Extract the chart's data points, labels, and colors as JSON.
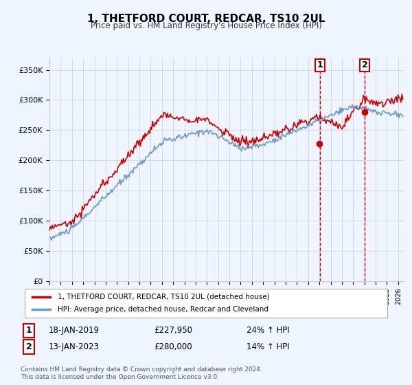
{
  "title": "1, THETFORD COURT, REDCAR, TS10 2UL",
  "subtitle": "Price paid vs. HM Land Registry's House Price Index (HPI)",
  "ylabel_ticks": [
    "£0",
    "£50K",
    "£100K",
    "£150K",
    "£200K",
    "£250K",
    "£300K",
    "£350K"
  ],
  "ytick_values": [
    0,
    50000,
    100000,
    150000,
    200000,
    250000,
    300000,
    350000
  ],
  "ylim": [
    0,
    370000
  ],
  "xlim_start": 1995.0,
  "xlim_end": 2026.5,
  "sale1_year": 2019.04,
  "sale1_price": 227950,
  "sale1_label": "1",
  "sale1_date": "18-JAN-2019",
  "sale1_pct": "24% ↑ HPI",
  "sale2_year": 2023.04,
  "sale2_price": 280000,
  "sale2_label": "2",
  "sale2_date": "13-JAN-2023",
  "sale2_pct": "14% ↑ HPI",
  "legend_line1": "1, THETFORD COURT, REDCAR, TS10 2UL (detached house)",
  "legend_line2": "HPI: Average price, detached house, Redcar and Cleveland",
  "footnote": "Contains HM Land Registry data © Crown copyright and database right 2024.\nThis data is licensed under the Open Government Licence v3.0.",
  "bg_color": "#f0f4ff",
  "plot_bg_color": "#ffffff",
  "red_color": "#cc0000",
  "blue_color": "#6699cc",
  "grid_color": "#cccccc"
}
